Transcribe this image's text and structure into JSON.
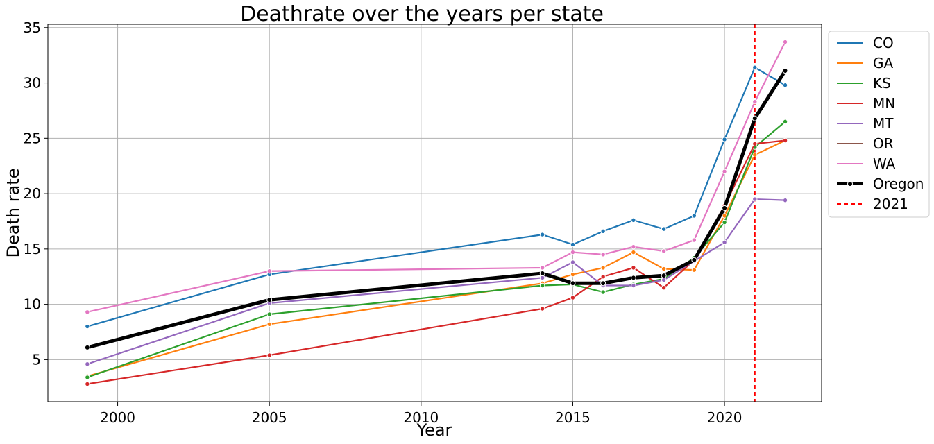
{
  "chart_data": {
    "type": "line",
    "title": "Deathrate over the years per state",
    "xlabel": "Year",
    "ylabel": "Death rate",
    "xlim": [
      1997.7,
      2023.2
    ],
    "ylim": [
      1.2,
      35.3
    ],
    "x_ticks": [
      2000,
      2005,
      2010,
      2015,
      2020
    ],
    "y_ticks": [
      5,
      10,
      15,
      20,
      25,
      30,
      35
    ],
    "grid": true,
    "legend_position": "outside-right",
    "series": [
      {
        "name": "CO",
        "color": "#1f77b4",
        "x": [
          1999,
          2005,
          2014,
          2015,
          2016,
          2017,
          2018,
          2019,
          2020,
          2021,
          2022
        ],
        "y": [
          8.0,
          12.7,
          16.3,
          15.4,
          16.6,
          17.6,
          16.8,
          18.0,
          24.9,
          31.4,
          29.8
        ]
      },
      {
        "name": "GA",
        "color": "#ff7f0e",
        "x": [
          1999,
          2005,
          2014,
          2015,
          2016,
          2017,
          2018,
          2019,
          2020,
          2021,
          2022
        ],
        "y": [
          3.5,
          8.2,
          11.9,
          12.7,
          13.3,
          14.7,
          13.2,
          13.1,
          18.0,
          23.5,
          24.8
        ]
      },
      {
        "name": "KS",
        "color": "#2ca02c",
        "x": [
          1999,
          2005,
          2014,
          2015,
          2016,
          2017,
          2018,
          2019,
          2020,
          2021,
          2022
        ],
        "y": [
          3.4,
          9.1,
          11.7,
          11.8,
          11.1,
          11.8,
          12.3,
          14.2,
          17.4,
          24.2,
          26.5
        ]
      },
      {
        "name": "MN",
        "color": "#d62728",
        "x": [
          1999,
          2005,
          2014,
          2015,
          2016,
          2017,
          2018,
          2019,
          2020,
          2021,
          2022
        ],
        "y": [
          2.8,
          5.4,
          9.6,
          10.6,
          12.5,
          13.3,
          11.5,
          14.0,
          18.9,
          24.5,
          24.8
        ]
      },
      {
        "name": "MT",
        "color": "#9467bd",
        "x": [
          1999,
          2005,
          2014,
          2015,
          2016,
          2017,
          2018,
          2019,
          2020,
          2021,
          2022
        ],
        "y": [
          4.6,
          10.1,
          12.4,
          13.8,
          11.7,
          11.7,
          12.2,
          13.9,
          15.6,
          19.5,
          19.4
        ]
      },
      {
        "name": "OR",
        "color": "#8c564b",
        "x": [
          1999,
          2005,
          2014,
          2015,
          2016,
          2017,
          2018,
          2019,
          2020,
          2021,
          2022
        ],
        "y": [
          6.1,
          10.4,
          12.8,
          11.9,
          11.9,
          12.4,
          12.6,
          14.0,
          18.7,
          26.8,
          31.1
        ]
      },
      {
        "name": "WA",
        "color": "#e377c2",
        "x": [
          1999,
          2005,
          2014,
          2015,
          2016,
          2017,
          2018,
          2019,
          2020,
          2021,
          2022
        ],
        "y": [
          9.3,
          13.0,
          13.3,
          14.7,
          14.5,
          15.2,
          14.8,
          15.8,
          22.0,
          28.3,
          33.7
        ]
      },
      {
        "name": "Oregon",
        "color": "#000000",
        "bold": true,
        "x": [
          1999,
          2005,
          2014,
          2015,
          2016,
          2017,
          2018,
          2019,
          2020,
          2021,
          2022
        ],
        "y": [
          6.1,
          10.4,
          12.8,
          11.9,
          11.9,
          12.4,
          12.6,
          14.0,
          18.7,
          26.8,
          31.1
        ]
      }
    ],
    "vline": {
      "x": 2021,
      "label": "2021",
      "color": "#ff0000"
    }
  }
}
